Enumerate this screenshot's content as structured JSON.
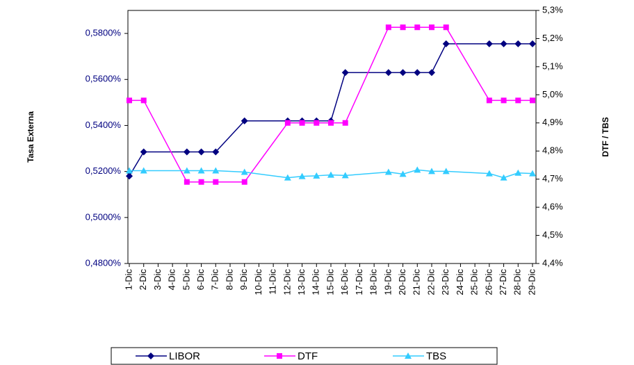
{
  "chart_data": {
    "type": "line",
    "categories": [
      "1-Dic",
      "2-Dic",
      "3-Dic",
      "4-Dic",
      "5-Dic",
      "6-Dic",
      "7-Dic",
      "8-Dic",
      "9-Dic",
      "10-Dic",
      "11-Dic",
      "12-Dic",
      "13-Dic",
      "14-Dic",
      "15-Dic",
      "16-Dic",
      "17-Dic",
      "18-Dic",
      "19-Dic",
      "20-Dic",
      "21-Dic",
      "22-Dic",
      "23-Dic",
      "24-Dic",
      "25-Dic",
      "26-Dic",
      "27-Dic",
      "28-Dic",
      "29-Dic"
    ],
    "y_label": "Tasa Externa",
    "y2_label": "DTF / TBS",
    "ylim": [
      0.48,
      0.59
    ],
    "yticks": [
      {
        "value": 0.48,
        "label": "0,4800%"
      },
      {
        "value": 0.5,
        "label": "0,5000%"
      },
      {
        "value": 0.52,
        "label": "0,5200%"
      },
      {
        "value": 0.54,
        "label": "0,5400%"
      },
      {
        "value": 0.56,
        "label": "0,5600%"
      },
      {
        "value": 0.58,
        "label": "0,5800%"
      }
    ],
    "y2lim": [
      4.4,
      5.3
    ],
    "y2ticks": [
      {
        "value": 4.4,
        "label": "4,4%"
      },
      {
        "value": 4.5,
        "label": "4,5%"
      },
      {
        "value": 4.6,
        "label": "4,6%"
      },
      {
        "value": 4.7,
        "label": "4,7%"
      },
      {
        "value": 4.8,
        "label": "4,8%"
      },
      {
        "value": 4.9,
        "label": "4,9%"
      },
      {
        "value": 5.0,
        "label": "5,0%"
      },
      {
        "value": 5.1,
        "label": "5,1%"
      },
      {
        "value": 5.2,
        "label": "5,2%"
      },
      {
        "value": 5.3,
        "label": "5,3%"
      }
    ],
    "series": [
      {
        "name": "LIBOR",
        "color": "#000080",
        "marker": "diamond",
        "values": [
          0.518,
          0.5285,
          null,
          null,
          0.5285,
          0.5285,
          0.5285,
          null,
          0.542,
          null,
          null,
          0.542,
          0.542,
          0.542,
          0.542,
          0.563,
          null,
          null,
          0.563,
          0.563,
          0.563,
          0.563,
          0.5755,
          null,
          null,
          0.5755,
          0.5755,
          0.5755,
          0.5755
        ]
      },
      {
        "name": "DTF",
        "color": "#FF00FF",
        "marker": "square",
        "axis": "y2",
        "values": [
          4.98,
          4.98,
          null,
          null,
          4.69,
          4.69,
          4.69,
          null,
          4.69,
          null,
          null,
          4.9,
          4.9,
          4.9,
          4.9,
          4.9,
          null,
          null,
          5.24,
          5.24,
          5.24,
          5.24,
          5.24,
          null,
          null,
          4.98,
          4.98,
          4.98,
          4.98
        ]
      },
      {
        "name": "TBS",
        "color": "#33CCFF",
        "marker": "triangle",
        "axis": "y2",
        "values": [
          4.73,
          4.73,
          null,
          null,
          4.73,
          4.73,
          4.73,
          null,
          4.725,
          null,
          null,
          4.705,
          4.71,
          4.712,
          4.715,
          4.713,
          null,
          null,
          4.725,
          4.718,
          4.733,
          4.728,
          4.728,
          null,
          null,
          4.72,
          4.705,
          4.722,
          4.72
        ]
      }
    ]
  }
}
